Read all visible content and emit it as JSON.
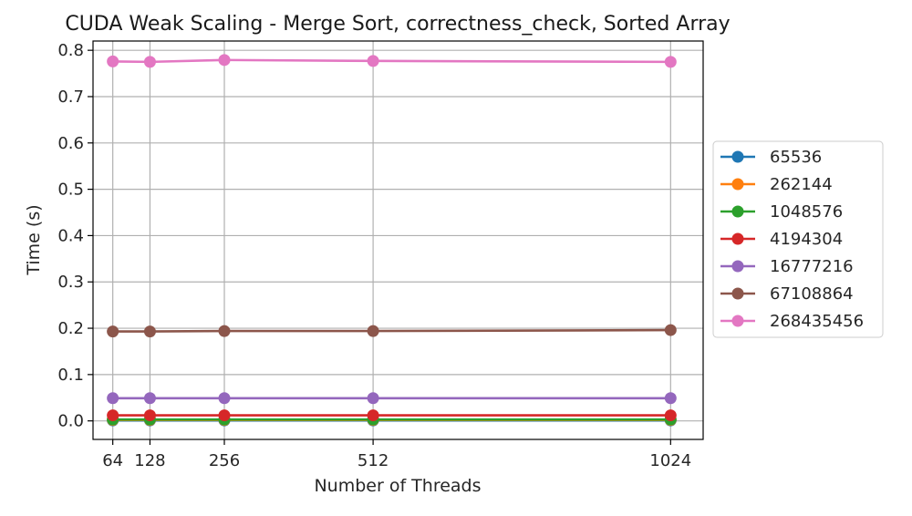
{
  "chart_data": {
    "type": "line",
    "title": "CUDA Weak Scaling - Merge Sort, correctness_check, Sorted Array",
    "xlabel": "Number of Threads",
    "ylabel": "Time (s)",
    "x": [
      64,
      128,
      256,
      512,
      1024
    ],
    "x_tick_labels": [
      "64",
      "128",
      "256",
      "512",
      "1024"
    ],
    "xlim": [
      30,
      1080
    ],
    "ylim": [
      -0.04,
      0.82
    ],
    "y_ticks": [
      0.0,
      0.1,
      0.2,
      0.3,
      0.4,
      0.5,
      0.6,
      0.7,
      0.8
    ],
    "y_tick_labels": [
      "0.0",
      "0.1",
      "0.2",
      "0.3",
      "0.4",
      "0.5",
      "0.6",
      "0.7",
      "0.8"
    ],
    "grid": true,
    "legend_position": "outside-right",
    "series": [
      {
        "name": "65536",
        "color": "#1f77b4",
        "values": [
          0.001,
          0.001,
          0.001,
          0.001,
          0.001
        ]
      },
      {
        "name": "262144",
        "color": "#ff7f0e",
        "values": [
          0.002,
          0.002,
          0.002,
          0.002,
          0.002
        ]
      },
      {
        "name": "1048576",
        "color": "#2ca02c",
        "values": [
          0.003,
          0.003,
          0.003,
          0.003,
          0.003
        ]
      },
      {
        "name": "4194304",
        "color": "#d62728",
        "values": [
          0.012,
          0.012,
          0.012,
          0.012,
          0.012
        ]
      },
      {
        "name": "16777216",
        "color": "#9467bd",
        "values": [
          0.049,
          0.049,
          0.049,
          0.049,
          0.049
        ]
      },
      {
        "name": "67108864",
        "color": "#8c564b",
        "values": [
          0.193,
          0.193,
          0.194,
          0.194,
          0.196
        ]
      },
      {
        "name": "268435456",
        "color": "#e377c2",
        "values": [
          0.776,
          0.775,
          0.779,
          0.777,
          0.775
        ]
      }
    ]
  }
}
